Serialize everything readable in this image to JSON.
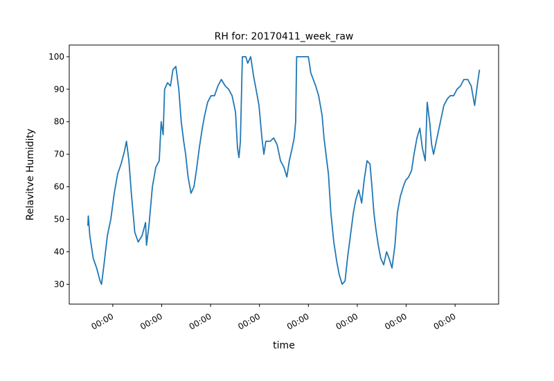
{
  "chart_data": {
    "type": "line",
    "title": "RH for: 20170411_week_raw",
    "x_label": "time",
    "y_label": "Relavitve Humidity",
    "xlim": [
      0.11,
      8.89
    ],
    "ylim": [
      23.9,
      103.6
    ],
    "xticks": [
      {
        "value": 1,
        "label": "00:00"
      },
      {
        "value": 2,
        "label": "00:00"
      },
      {
        "value": 3,
        "label": "00:00"
      },
      {
        "value": 4,
        "label": "00:00"
      },
      {
        "value": 5,
        "label": "00:00"
      },
      {
        "value": 6,
        "label": "00:00"
      },
      {
        "value": 7,
        "label": "00:00"
      },
      {
        "value": 8,
        "label": "00:00"
      }
    ],
    "yticks": [
      30,
      40,
      50,
      60,
      70,
      80,
      90,
      100
    ],
    "grid": false,
    "series": [
      {
        "color": "#1f77b4",
        "x": [
          0.49,
          0.5,
          0.53,
          0.6,
          0.67,
          0.74,
          0.77,
          0.82,
          0.89,
          0.96,
          1.03,
          1.1,
          1.17,
          1.24,
          1.28,
          1.33,
          1.38,
          1.45,
          1.52,
          1.6,
          1.67,
          1.69,
          1.74,
          1.81,
          1.88,
          1.95,
          1.99,
          2.03,
          2.06,
          2.12,
          2.18,
          2.23,
          2.29,
          2.35,
          2.4,
          2.45,
          2.49,
          2.54,
          2.6,
          2.66,
          2.71,
          2.77,
          2.83,
          2.88,
          2.94,
          3.01,
          3.08,
          3.15,
          3.22,
          3.3,
          3.37,
          3.44,
          3.51,
          3.55,
          3.58,
          3.61,
          3.65,
          3.72,
          3.76,
          3.82,
          3.88,
          3.93,
          3.99,
          4.05,
          4.09,
          4.13,
          4.22,
          4.29,
          4.36,
          4.43,
          4.5,
          4.56,
          4.61,
          4.67,
          4.71,
          4.74,
          4.76,
          4.93,
          5.0,
          5.05,
          5.1,
          5.15,
          5.21,
          5.28,
          5.32,
          5.36,
          5.41,
          5.46,
          5.52,
          5.58,
          5.63,
          5.69,
          5.75,
          5.8,
          5.86,
          5.92,
          5.97,
          6.03,
          6.09,
          6.14,
          6.2,
          6.26,
          6.3,
          6.34,
          6.38,
          6.43,
          6.48,
          6.54,
          6.6,
          6.65,
          6.71,
          6.77,
          6.82,
          6.88,
          6.94,
          6.99,
          7.05,
          7.11,
          7.16,
          7.22,
          7.28,
          7.33,
          7.39,
          7.43,
          7.48,
          7.52,
          7.56,
          7.63,
          7.7,
          7.77,
          7.84,
          7.9,
          7.97,
          8.04,
          8.11,
          8.18,
          8.26,
          8.33,
          8.4,
          8.47,
          8.5
        ],
        "values": [
          48,
          51,
          45,
          38,
          35,
          31,
          30,
          36,
          45,
          50,
          58,
          64,
          67,
          71,
          74,
          68,
          58,
          46,
          43,
          45,
          49,
          42,
          48,
          60,
          66,
          68,
          80,
          76,
          90,
          92,
          91,
          96,
          97,
          90,
          80,
          74,
          70,
          63,
          58,
          60,
          65,
          72,
          78,
          82,
          86,
          88,
          88,
          91,
          93,
          91,
          90,
          88,
          83,
          72,
          69,
          74,
          100,
          100,
          98,
          100,
          94,
          90,
          85,
          75,
          70,
          74,
          74,
          75,
          73,
          68,
          66,
          63,
          68,
          72,
          75,
          80,
          100,
          100,
          100,
          95,
          93,
          91,
          88,
          82,
          75,
          70,
          64,
          52,
          43,
          37,
          33,
          30,
          31,
          38,
          45,
          52,
          56,
          59,
          55,
          62,
          68,
          67,
          60,
          52,
          47,
          42,
          38,
          36,
          40,
          38,
          35,
          42,
          52,
          57,
          60,
          62,
          63,
          65,
          70,
          75,
          78,
          72,
          68,
          86,
          80,
          73,
          70,
          75,
          80,
          85,
          87,
          88,
          88,
          90,
          91,
          93,
          93,
          91,
          85,
          93,
          96
        ]
      }
    ]
  }
}
